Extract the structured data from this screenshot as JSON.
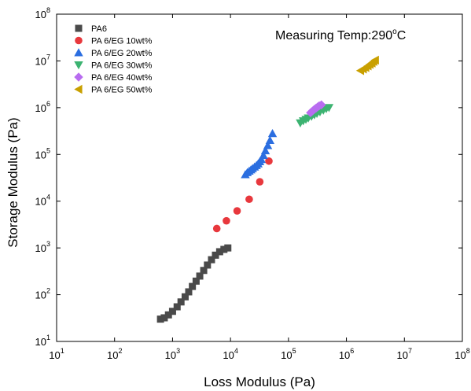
{
  "chart_data": {
    "type": "scatter",
    "xscale": "log",
    "yscale": "log",
    "xlabel": "Loss Modulus (Pa)",
    "ylabel": "Storage Modulus (Pa)",
    "xlim": [
      10,
      100000000
    ],
    "ylim": [
      10,
      100000000
    ],
    "x_ticks": [
      {
        "value": 10,
        "base": "10",
        "exp": "1"
      },
      {
        "value": 100,
        "base": "10",
        "exp": "2"
      },
      {
        "value": 1000,
        "base": "10",
        "exp": "3"
      },
      {
        "value": 10000,
        "base": "10",
        "exp": "4"
      },
      {
        "value": 100000,
        "base": "10",
        "exp": "5"
      },
      {
        "value": 1000000,
        "base": "10",
        "exp": "6"
      },
      {
        "value": 10000000,
        "base": "10",
        "exp": "7"
      },
      {
        "value": 100000000,
        "base": "10",
        "exp": "8"
      }
    ],
    "y_ticks": [
      {
        "value": 10,
        "base": "10",
        "exp": "1"
      },
      {
        "value": 100,
        "base": "10",
        "exp": "2"
      },
      {
        "value": 1000,
        "base": "10",
        "exp": "3"
      },
      {
        "value": 10000,
        "base": "10",
        "exp": "4"
      },
      {
        "value": 100000,
        "base": "10",
        "exp": "5"
      },
      {
        "value": 1000000,
        "base": "10",
        "exp": "6"
      },
      {
        "value": 10000000,
        "base": "10",
        "exp": "7"
      },
      {
        "value": 100000000,
        "base": "10",
        "exp": "8"
      }
    ],
    "annotation": "Measuring Temp:290°C",
    "annotation_parts": {
      "text": "Measuring Temp:290",
      "degree": "o",
      "unit": "C"
    },
    "grid": false,
    "legend_position": "top-left",
    "series": [
      {
        "name": "PA6",
        "color": "#4a4a4a",
        "marker": "square",
        "points": [
          [
            620,
            30
          ],
          [
            720,
            32
          ],
          [
            850,
            37
          ],
          [
            1000,
            44
          ],
          [
            1200,
            55
          ],
          [
            1400,
            70
          ],
          [
            1650,
            90
          ],
          [
            1900,
            115
          ],
          [
            2200,
            150
          ],
          [
            2550,
            195
          ],
          [
            2950,
            250
          ],
          [
            3450,
            330
          ],
          [
            4000,
            430
          ],
          [
            4700,
            560
          ],
          [
            5500,
            700
          ],
          [
            6500,
            830
          ],
          [
            7700,
            930
          ],
          [
            9000,
            1000
          ]
        ]
      },
      {
        "name": "PA 6/EG 10wt%",
        "color": "#e8383d",
        "marker": "circle",
        "points": [
          [
            5800,
            2600
          ],
          [
            8500,
            3800
          ],
          [
            13000,
            6200
          ],
          [
            21000,
            11000
          ],
          [
            32000,
            26000
          ],
          [
            46000,
            72000
          ]
        ]
      },
      {
        "name": "PA 6/EG 20wt%",
        "color": "#2b6ee0",
        "marker": "triangle-up",
        "points": [
          [
            18000,
            37000
          ],
          [
            19500,
            41000
          ],
          [
            21000,
            44000
          ],
          [
            22500,
            47000
          ],
          [
            24000,
            50000
          ],
          [
            26000,
            54000
          ],
          [
            28000,
            58000
          ],
          [
            30000,
            63000
          ],
          [
            32000,
            70000
          ],
          [
            34000,
            78000
          ],
          [
            37000,
            95000
          ],
          [
            40000,
            120000
          ],
          [
            44000,
            155000
          ],
          [
            48000,
            200000
          ],
          [
            53000,
            280000
          ]
        ]
      },
      {
        "name": "PA 6/EG 30wt%",
        "color": "#3cb371",
        "marker": "triangle-down",
        "points": [
          [
            160000,
            470000
          ],
          [
            180000,
            520000
          ],
          [
            200000,
            560000
          ],
          [
            220000,
            600000
          ],
          [
            250000,
            650000
          ],
          [
            280000,
            700000
          ],
          [
            310000,
            750000
          ],
          [
            350000,
            810000
          ],
          [
            400000,
            880000
          ],
          [
            450000,
            950000
          ],
          [
            500000,
            1000000
          ]
        ]
      },
      {
        "name": "PA 6/EG 40wt%",
        "color": "#b86cf0",
        "marker": "diamond",
        "points": [
          [
            240000,
            780000
          ],
          [
            260000,
            850000
          ],
          [
            280000,
            920000
          ],
          [
            300000,
            980000
          ],
          [
            320000,
            1040000
          ],
          [
            340000,
            1100000
          ],
          [
            370000,
            1150000
          ]
        ]
      },
      {
        "name": "PA 6/EG 50wt%",
        "color": "#c9a000",
        "marker": "triangle-left",
        "points": [
          [
            1750000,
            6200000
          ],
          [
            1950000,
            6700000
          ],
          [
            2150000,
            7200000
          ],
          [
            2350000,
            7800000
          ],
          [
            2550000,
            8400000
          ],
          [
            2750000,
            9000000
          ],
          [
            2950000,
            9700000
          ],
          [
            3150000,
            10400000
          ]
        ]
      }
    ]
  }
}
